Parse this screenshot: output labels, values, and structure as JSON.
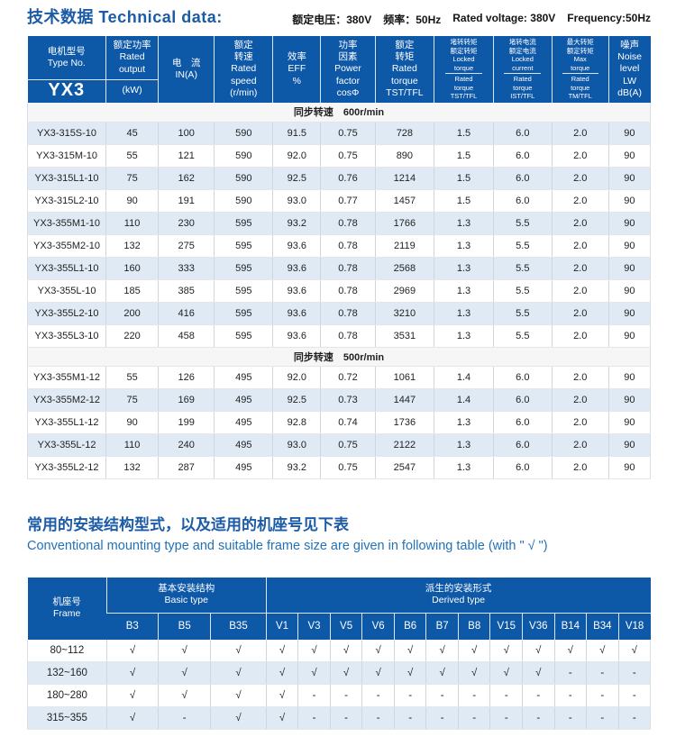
{
  "colors": {
    "header_blue": "#0e58a8",
    "row_alt_blue": "#dfeaf5",
    "heading_blue": "#1c5ba6",
    "heading_en_blue": "#2172b8",
    "band_bg": "#f6f6f6"
  },
  "header": {
    "title_zh": "技术数据",
    "title_en": "Technical data:",
    "specs": {
      "voltage_zh": "额定电压：380V",
      "frequency_zh": "频率：50Hz",
      "voltage_en": "Rated voltage: 380V",
      "frequency_en": "Frequency:50Hz"
    }
  },
  "table1": {
    "header": {
      "columns": [
        {
          "id": "type-no",
          "type": "split",
          "top": [
            "电机型号",
            "Type No."
          ],
          "bottom": [
            "YX3"
          ],
          "big": true
        },
        {
          "id": "rated-output",
          "type": "split",
          "top": [
            "额定功率",
            "Rated",
            "output"
          ],
          "bottom": [
            "(kW)"
          ],
          "big": false
        },
        {
          "id": "current",
          "type": "plain",
          "lines": [
            "电　流",
            "IN(A)"
          ]
        },
        {
          "id": "rated-speed",
          "type": "plain",
          "lines": [
            "额定",
            "转速",
            "Rated",
            "speed",
            "(r/min)"
          ]
        },
        {
          "id": "efficiency",
          "type": "plain",
          "lines": [
            "效率",
            "EFF",
            "%"
          ]
        },
        {
          "id": "power-factor",
          "type": "plain",
          "lines": [
            "功率",
            "因素",
            "Power",
            "factor",
            "cosΦ"
          ]
        },
        {
          "id": "rated-torque",
          "type": "plain",
          "lines": [
            "额定",
            "转矩",
            "Rated",
            "torque",
            "TST/TFL"
          ]
        },
        {
          "id": "locked-torque-ratio",
          "type": "frac",
          "lines": [
            "堵转转矩",
            "额定转矩",
            "Locked",
            "torque",
            "Rated",
            "torque",
            "TST/TFL"
          ],
          "bar_after": 3
        },
        {
          "id": "locked-current-ratio",
          "type": "frac",
          "lines": [
            "堵转电流",
            "额定电流",
            "Locked",
            "current",
            "Rated",
            "torque",
            "IST/TFL"
          ],
          "bar_after": 3
        },
        {
          "id": "max-torque-ratio",
          "type": "frac",
          "lines": [
            "最大转矩",
            "额定转矩",
            "Max",
            "torque",
            "Rated",
            "torque",
            "TM/TFL"
          ],
          "bar_after": 3
        },
        {
          "id": "noise-level",
          "type": "plain",
          "lines": [
            "噪声",
            "Noise",
            "level",
            "LW",
            "dB(A)"
          ]
        }
      ]
    },
    "sections": [
      {
        "label": "同步转速　600r/min",
        "first_row_blue": true,
        "rows": [
          [
            "YX3-315S-10",
            "45",
            "100",
            "590",
            "91.5",
            "0.75",
            "728",
            "1.5",
            "6.0",
            "2.0",
            "90"
          ],
          [
            "YX3-315M-10",
            "55",
            "121",
            "590",
            "92.0",
            "0.75",
            "890",
            "1.5",
            "6.0",
            "2.0",
            "90"
          ],
          [
            "YX3-315L1-10",
            "75",
            "162",
            "590",
            "92.5",
            "0.76",
            "1214",
            "1.5",
            "6.0",
            "2.0",
            "90"
          ],
          [
            "YX3-315L2-10",
            "90",
            "191",
            "590",
            "93.0",
            "0.77",
            "1457",
            "1.5",
            "6.0",
            "2.0",
            "90"
          ],
          [
            "YX3-355M1-10",
            "110",
            "230",
            "595",
            "93.2",
            "0.78",
            "1766",
            "1.3",
            "5.5",
            "2.0",
            "90"
          ],
          [
            "YX3-355M2-10",
            "132",
            "275",
            "595",
            "93.6",
            "0.78",
            "2119",
            "1.3",
            "5.5",
            "2.0",
            "90"
          ],
          [
            "YX3-355L1-10",
            "160",
            "333",
            "595",
            "93.6",
            "0.78",
            "2568",
            "1.3",
            "5.5",
            "2.0",
            "90"
          ],
          [
            "YX3-355L-10",
            "185",
            "385",
            "595",
            "93.6",
            "0.78",
            "2969",
            "1.3",
            "5.5",
            "2.0",
            "90"
          ],
          [
            "YX3-355L2-10",
            "200",
            "416",
            "595",
            "93.6",
            "0.78",
            "3210",
            "1.3",
            "5.5",
            "2.0",
            "90"
          ],
          [
            "YX3-355L3-10",
            "220",
            "458",
            "595",
            "93.6",
            "0.78",
            "3531",
            "1.3",
            "5.5",
            "2.0",
            "90"
          ]
        ]
      },
      {
        "label": "同步转速　500r/min",
        "first_row_blue": false,
        "rows": [
          [
            "YX3-355M1-12",
            "55",
            "126",
            "495",
            "92.0",
            "0.72",
            "1061",
            "1.4",
            "6.0",
            "2.0",
            "90"
          ],
          [
            "YX3-355M2-12",
            "75",
            "169",
            "495",
            "92.5",
            "0.73",
            "1447",
            "1.4",
            "6.0",
            "2.0",
            "90"
          ],
          [
            "YX3-355L1-12",
            "90",
            "199",
            "495",
            "92.8",
            "0.74",
            "1736",
            "1.3",
            "6.0",
            "2.0",
            "90"
          ],
          [
            "YX3-355L-12",
            "110",
            "240",
            "495",
            "93.0",
            "0.75",
            "2122",
            "1.3",
            "6.0",
            "2.0",
            "90"
          ],
          [
            "YX3-355L2-12",
            "132",
            "287",
            "495",
            "93.2",
            "0.75",
            "2547",
            "1.3",
            "6.0",
            "2.0",
            "90"
          ]
        ]
      }
    ]
  },
  "section2_heading": {
    "zh": "常用的安装结构型式，以及适用的机座号见下表",
    "en": "Conventional mounting type and suitable frame size are given in following table (with \" √ \")"
  },
  "table2": {
    "header": {
      "frame_lines": [
        "机座号",
        "Frame"
      ],
      "groups": [
        {
          "zh": "基本安装结构",
          "en": "Basic type",
          "cols": [
            "B3",
            "B5",
            "B35"
          ]
        },
        {
          "zh": "派生的安装形式",
          "en": "Derived type",
          "cols": [
            "V1",
            "V3",
            "V5",
            "V6",
            "B6",
            "B7",
            "B8",
            "V15",
            "V36",
            "B14",
            "B34",
            "V18"
          ]
        }
      ]
    },
    "rows": [
      {
        "frame": "80~112",
        "marks": [
          "√",
          "√",
          "√",
          "√",
          "√",
          "√",
          "√",
          "√",
          "√",
          "√",
          "√",
          "√",
          "√",
          "√",
          "√"
        ]
      },
      {
        "frame": "132~160",
        "marks": [
          "√",
          "√",
          "√",
          "√",
          "√",
          "√",
          "√",
          "√",
          "√",
          "√",
          "√",
          "√",
          "-",
          "-",
          "-"
        ]
      },
      {
        "frame": "180~280",
        "marks": [
          "√",
          "√",
          "√",
          "√",
          "-",
          "-",
          "-",
          "-",
          "-",
          "-",
          "-",
          "-",
          "-",
          "-",
          "-"
        ]
      },
      {
        "frame": "315~355",
        "marks": [
          "√",
          "-",
          "√",
          "√",
          "-",
          "-",
          "-",
          "-",
          "-",
          "-",
          "-",
          "-",
          "-",
          "-",
          "-"
        ]
      }
    ]
  }
}
